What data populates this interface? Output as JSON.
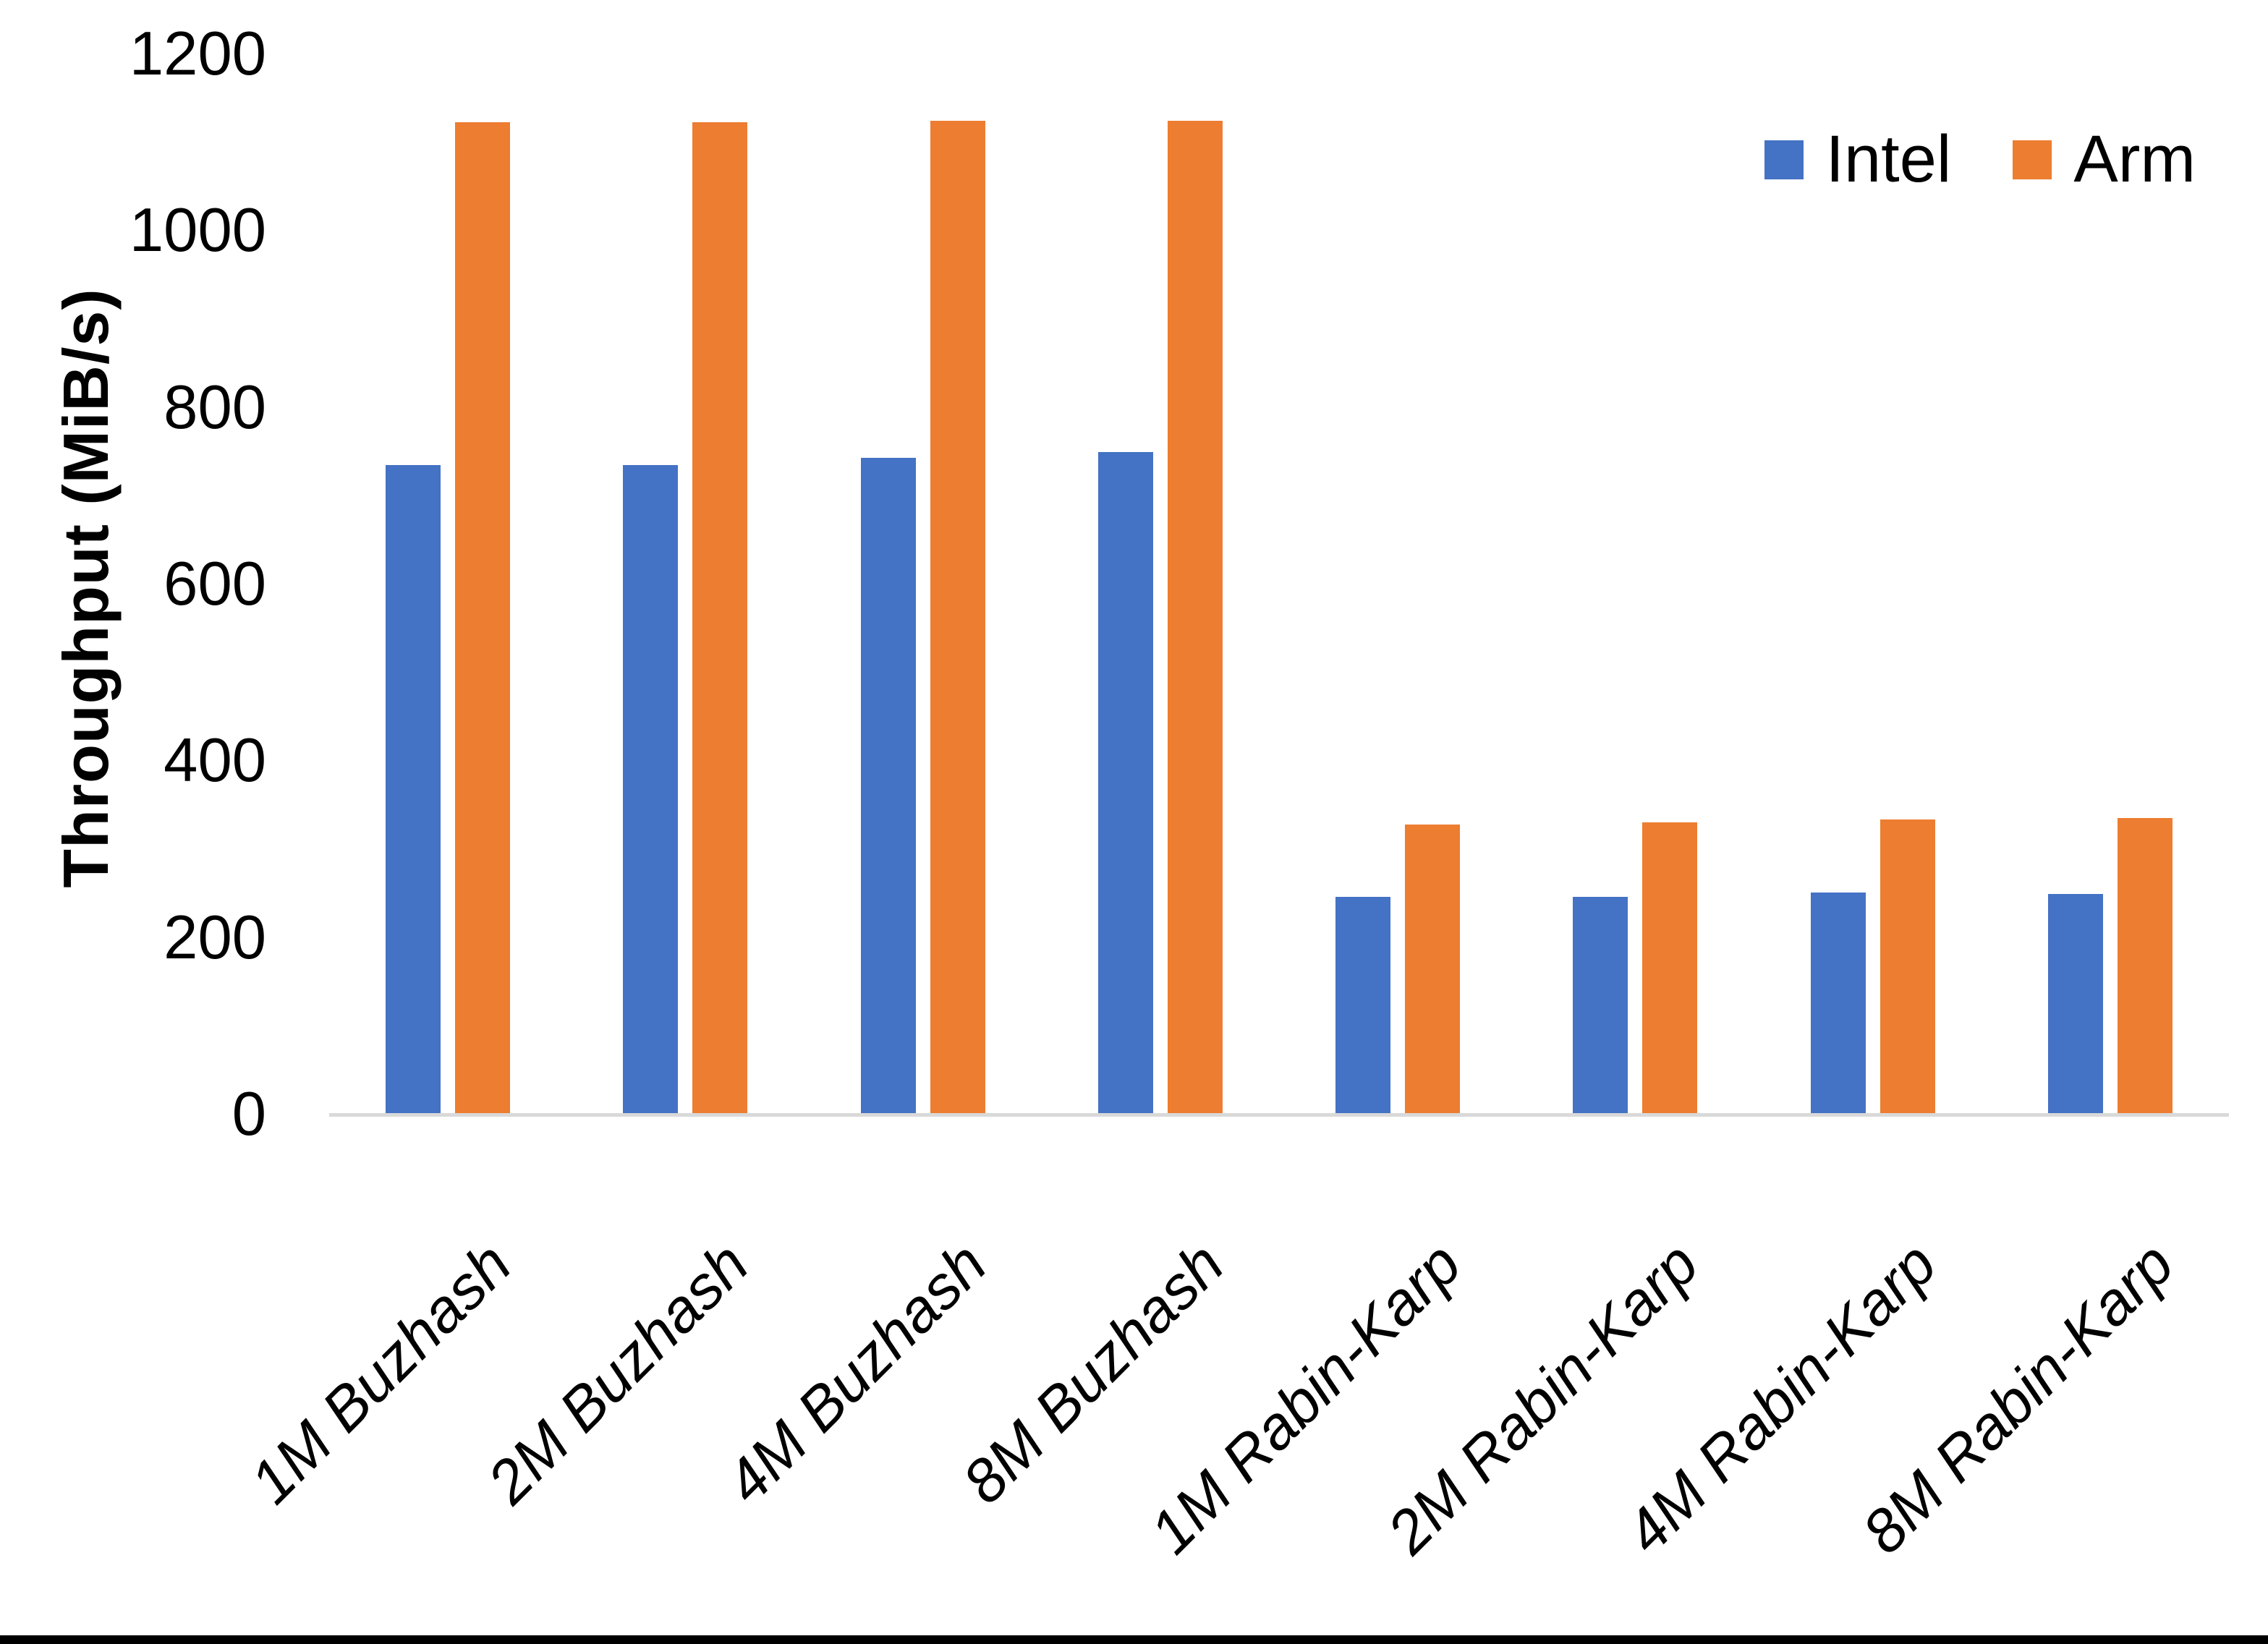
{
  "chart_data": {
    "type": "bar",
    "title": "",
    "xlabel": "",
    "ylabel": "Throughput (MiB/s)",
    "ylim": [
      0,
      1200
    ],
    "yticks": [
      0,
      200,
      400,
      600,
      800,
      1000,
      1200
    ],
    "grid": false,
    "legend_position": "top-right",
    "categories": [
      "1M Buzhash",
      "2M Buzhash",
      "4M Buzhash",
      "8M Buzhash",
      "1M Rabin-Karp",
      "2M Rabin-Karp",
      "4M Rabin-Karp",
      "8M Rabin-Karp"
    ],
    "series": [
      {
        "name": "Intel",
        "color": "#4472C4",
        "values": [
          735,
          735,
          743,
          750,
          246,
          246,
          251,
          250
        ]
      },
      {
        "name": "Arm",
        "color": "#ED7D31",
        "values": [
          1123,
          1123,
          1125,
          1125,
          328,
          331,
          334,
          336
        ]
      }
    ]
  },
  "colors": {
    "background": "#FFFFFF",
    "axis_line": "#D9D9D9",
    "text": "#000000",
    "bottom_bar": "#000000"
  }
}
